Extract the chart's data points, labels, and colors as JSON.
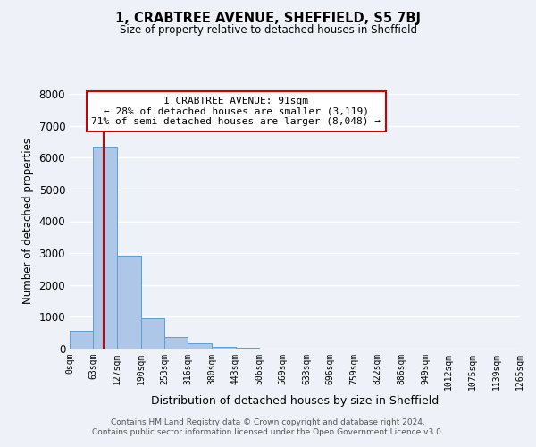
{
  "title": "1, CRABTREE AVENUE, SHEFFIELD, S5 7BJ",
  "subtitle": "Size of property relative to detached houses in Sheffield",
  "xlabel": "Distribution of detached houses by size in Sheffield",
  "ylabel": "Number of detached properties",
  "bar_values": [
    560,
    6350,
    2920,
    960,
    360,
    160,
    60,
    30,
    0,
    0,
    0,
    0,
    0,
    0,
    0,
    0,
    0,
    0,
    0
  ],
  "bar_left_edges": [
    0,
    63,
    127,
    190,
    253,
    316,
    380,
    443,
    506,
    569,
    633,
    696,
    759,
    822,
    886,
    949,
    1012,
    1075,
    1139
  ],
  "bin_width": 63,
  "tick_labels": [
    "0sqm",
    "63sqm",
    "127sqm",
    "190sqm",
    "253sqm",
    "316sqm",
    "380sqm",
    "443sqm",
    "506sqm",
    "569sqm",
    "633sqm",
    "696sqm",
    "759sqm",
    "822sqm",
    "886sqm",
    "949sqm",
    "1012sqm",
    "1075sqm",
    "1139sqm",
    "1265sqm"
  ],
  "bar_color": "#aec6e8",
  "bar_edgecolor": "#5a9fd4",
  "vline_x": 91,
  "vline_color": "#cc0000",
  "ylim": [
    0,
    8000
  ],
  "yticks": [
    0,
    1000,
    2000,
    3000,
    4000,
    5000,
    6000,
    7000,
    8000
  ],
  "annotation_title": "1 CRABTREE AVENUE: 91sqm",
  "annotation_line1": "← 28% of detached houses are smaller (3,119)",
  "annotation_line2": "71% of semi-detached houses are larger (8,048) →",
  "annotation_box_color": "#ffffff",
  "annotation_box_edgecolor": "#cc0000",
  "footer_line1": "Contains HM Land Registry data © Crown copyright and database right 2024.",
  "footer_line2": "Contains public sector information licensed under the Open Government Licence v3.0.",
  "background_color": "#eef2f8",
  "grid_color": "#ffffff"
}
